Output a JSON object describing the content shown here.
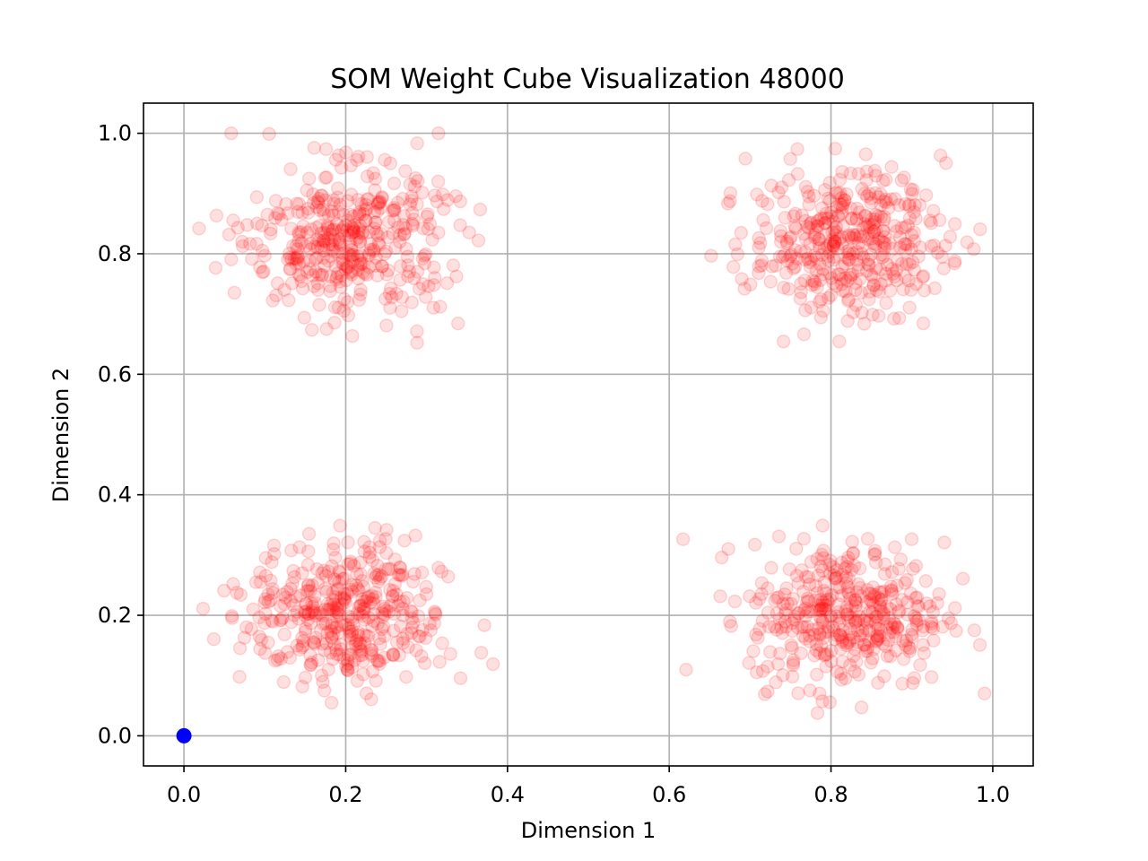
{
  "chart_data": {
    "type": "scatter",
    "title": "SOM Weight Cube Visualization 48000",
    "xlabel": "Dimension 1",
    "ylabel": "Dimension 2",
    "xlim": [
      -0.05,
      1.05
    ],
    "ylim": [
      -0.05,
      1.05
    ],
    "xticks": [
      "0.0",
      "0.2",
      "0.4",
      "0.6",
      "0.8",
      "1.0"
    ],
    "yticks": [
      "0.0",
      "0.2",
      "0.4",
      "0.6",
      "0.8",
      "1.0"
    ],
    "grid": true,
    "series": [
      {
        "marker": "open circle",
        "color": "#ff0000",
        "alpha": 0.12,
        "clusters": [
          {
            "center": [
              0.2,
              0.82
            ],
            "spread": 0.06,
            "count": 400
          },
          {
            "center": [
              0.82,
              0.82
            ],
            "spread": 0.06,
            "count": 400
          },
          {
            "center": [
              0.2,
              0.2
            ],
            "spread": 0.06,
            "count": 400
          },
          {
            "center": [
              0.82,
              0.2
            ],
            "spread": 0.06,
            "count": 400
          }
        ],
        "x_range": [
          0.0,
          1.0
        ],
        "y_range": [
          0.0,
          1.0
        ]
      },
      {
        "marker": "filled circle",
        "color": "#0000ff",
        "points": [
          [
            0.0,
            0.0
          ]
        ]
      }
    ]
  }
}
